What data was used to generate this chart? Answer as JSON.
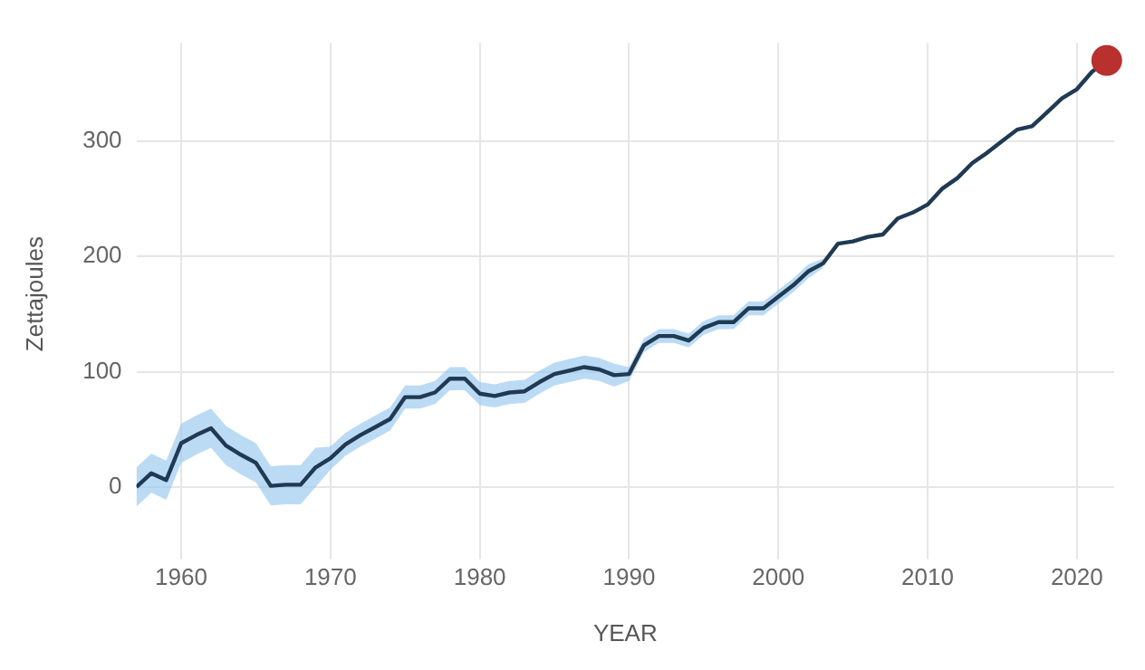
{
  "chart_data": {
    "type": "line",
    "xlabel": "YEAR",
    "ylabel": "Zettajoules",
    "x": [
      1957,
      1958,
      1959,
      1960,
      1961,
      1962,
      1963,
      1964,
      1965,
      1966,
      1967,
      1968,
      1969,
      1970,
      1971,
      1972,
      1973,
      1974,
      1975,
      1976,
      1977,
      1978,
      1979,
      1980,
      1981,
      1982,
      1983,
      1984,
      1985,
      1986,
      1987,
      1988,
      1989,
      1990,
      1991,
      1992,
      1993,
      1994,
      1995,
      1996,
      1997,
      1998,
      1999,
      2000,
      2001,
      2002,
      2003,
      2004,
      2005,
      2006,
      2007,
      2008,
      2009,
      2010,
      2011,
      2012,
      2013,
      2014,
      2015,
      2016,
      2017,
      2018,
      2019,
      2020,
      2021,
      2022
    ],
    "series": [
      {
        "color": "#1f3a52",
        "marker": "none",
        "line_style": "solid",
        "values": [
          0,
          12,
          6,
          38,
          45,
          51,
          36,
          28,
          21,
          1,
          2,
          2,
          17,
          25,
          37,
          45,
          52,
          59,
          78,
          78,
          82,
          94,
          94,
          81,
          79,
          82,
          83,
          91,
          98,
          101,
          104,
          102,
          97,
          98,
          123,
          131,
          131,
          127,
          138,
          143,
          143,
          155,
          155,
          165,
          175,
          187,
          194,
          211,
          213,
          217,
          219,
          233,
          238,
          245,
          259,
          268,
          281,
          290,
          300,
          310,
          313,
          325,
          337,
          345,
          360,
          370
        ],
        "lower": [
          -17,
          -5,
          -11,
          21,
          28,
          34,
          19,
          11,
          4,
          -16,
          -15,
          -15,
          0,
          15,
          27,
          35,
          42,
          49,
          68,
          68,
          72,
          84,
          84,
          71,
          69,
          72,
          73,
          81,
          88,
          91,
          94,
          92,
          87,
          92,
          117,
          125,
          125,
          121,
          132,
          137,
          137,
          149,
          149,
          159,
          169,
          181,
          190,
          null,
          null,
          null,
          null,
          null,
          null,
          null,
          null,
          null,
          null,
          null,
          null,
          null,
          null,
          null,
          null,
          null,
          null,
          null
        ],
        "upper": [
          17,
          29,
          23,
          55,
          62,
          68,
          53,
          45,
          38,
          18,
          19,
          19,
          34,
          35,
          47,
          55,
          62,
          69,
          88,
          88,
          92,
          104,
          104,
          91,
          89,
          92,
          93,
          101,
          108,
          111,
          114,
          112,
          107,
          104,
          129,
          137,
          137,
          133,
          144,
          149,
          149,
          161,
          161,
          171,
          181,
          193,
          198,
          null,
          null,
          null,
          null,
          null,
          null,
          null,
          null,
          null,
          null,
          null,
          null,
          null,
          null,
          null,
          null,
          null,
          null,
          null
        ]
      },
      {
        "type": "scatter",
        "color": "#b8312f",
        "marker": "circle",
        "x": [
          2022
        ],
        "values": [
          370
        ]
      }
    ],
    "xlim": [
      1957,
      2022.5
    ],
    "xticks": [
      1960,
      1970,
      1980,
      1990,
      2000,
      2010,
      2020
    ],
    "ylim": [
      -50,
      385
    ],
    "yticks": [
      0,
      100,
      200,
      300
    ],
    "grid": true,
    "legend": false
  }
}
